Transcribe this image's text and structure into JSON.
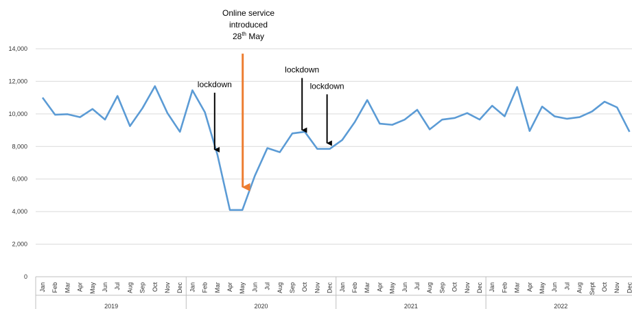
{
  "chart_data": {
    "type": "line",
    "title": "",
    "xlabel": "",
    "ylabel": "",
    "ylim": [
      0,
      14000
    ],
    "yticks": [
      "0",
      "2,000",
      "4,000",
      "6,000",
      "8,000",
      "10,000",
      "12,000",
      "14,000"
    ],
    "grid": "horizontal",
    "line_color": "#5B9BD5",
    "years": [
      {
        "label": "2019",
        "months": [
          "Jan",
          "Feb",
          "Mar",
          "Apr",
          "May",
          "Jun",
          "Jul",
          "Aug",
          "Sep",
          "Oct",
          "Nov",
          "Dec"
        ]
      },
      {
        "label": "2020",
        "months": [
          "Jan",
          "Feb",
          "Mar",
          "Apr",
          "May",
          "Jun",
          "Jul",
          "Aug",
          "Sep",
          "Oct",
          "Nov",
          "Dec"
        ]
      },
      {
        "label": "2021",
        "months": [
          "Jan",
          "Feb",
          "Mar",
          "Apr",
          "May",
          "Jun",
          "Jul",
          "Aug",
          "Sep",
          "Oct",
          "Nov",
          "Dec"
        ]
      },
      {
        "label": "2022",
        "months": [
          "Jan",
          "Feb",
          "Mar",
          "Apr",
          "May",
          "Jun",
          "Jul",
          "Aug",
          "Sept",
          "Oct",
          "Nov",
          "Dec"
        ]
      }
    ],
    "series": [
      {
        "values": [
          11000,
          9950,
          9980,
          9800,
          10300,
          9650,
          11100,
          9250,
          10350,
          11700,
          10050,
          8900,
          11450,
          10100,
          7500,
          4100,
          4100,
          6200,
          7900,
          7650,
          8800,
          8900,
          7850,
          7850,
          8400,
          9500,
          10850,
          9400,
          9330,
          9650,
          10250,
          9050,
          9650,
          9750,
          10050,
          9650,
          10500,
          9850,
          11650,
          8950,
          10450,
          9850,
          9700,
          9800,
          10150,
          10750,
          10400,
          8900
        ]
      }
    ],
    "annotations": [
      {
        "kind": "black-arrow",
        "label": "lockdown",
        "month_index": 14,
        "arrow_from": 11300,
        "arrow_to": 7800
      },
      {
        "kind": "orange-arrow",
        "label_lines": [
          "Online service",
          "introduced"
        ],
        "date_day": "28",
        "date_sup": "th",
        "date_month": "May",
        "month_index": 16,
        "arrow_from": 13700,
        "arrow_to": 5500
      },
      {
        "kind": "black-arrow",
        "label": "lockdown",
        "month_index": 21,
        "arrow_from": 12200,
        "arrow_to": 9000
      },
      {
        "kind": "black-arrow",
        "label": "lockdown",
        "month_index": 23,
        "arrow_from": 11200,
        "arrow_to": 8200
      }
    ],
    "colors": {
      "line": "#5B9BD5",
      "orange_arrow": "#ED7D31",
      "grid": "#D9D9D9",
      "axis": "#BFBFBF"
    }
  }
}
